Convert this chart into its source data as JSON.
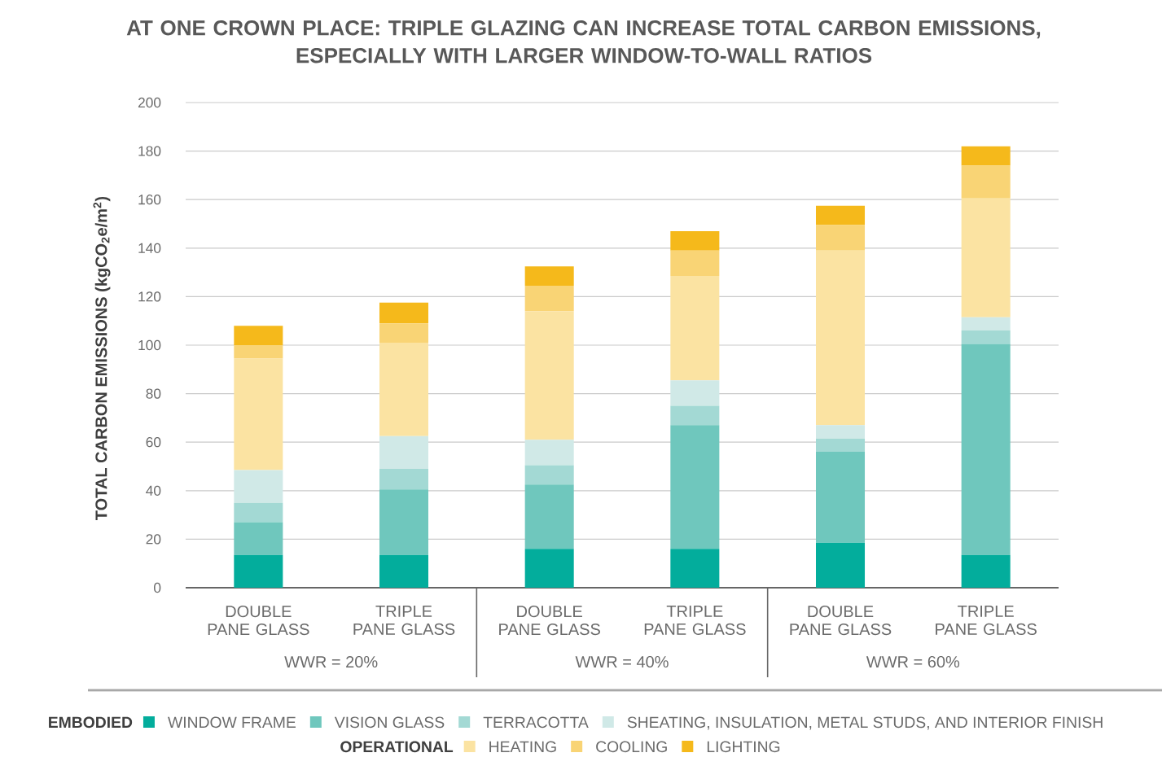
{
  "chart_data": {
    "type": "bar",
    "stacked": true,
    "title": "AT ONE CROWN PLACE: TRIPLE GLAZING CAN INCREASE TOTAL CARBON EMISSIONS, ESPECIALLY WITH LARGER WINDOW-TO-WALL RATIOS",
    "ylabel": "TOTAL CARBON EMISSIONS (kgCO$_{2}$e/m$^{2}$)",
    "categories": [
      "DOUBLE PANE GLASS",
      "TRIPLE PANE GLASS",
      "DOUBLE PANE GLASS",
      "TRIPLE PANE GLASS",
      "DOUBLE PANE GLASS",
      "TRIPLE PANE GLASS"
    ],
    "series": [
      {
        "name": "WINDOW FRAME",
        "color": "#03ad9c",
        "values": [
          13.5,
          13.5,
          16,
          16,
          18.5,
          13.5
        ]
      },
      {
        "name": "VISION GLASS",
        "color": "#6fc7bd",
        "values": [
          13.5,
          27,
          26.5,
          51,
          37.5,
          87
        ]
      },
      {
        "name": "TERRACOTTA",
        "color": "#a3d9d4",
        "values": [
          8,
          8.5,
          8,
          8,
          5.5,
          5.5
        ]
      },
      {
        "name": "SHEATING, INSULATION, METAL STUDS, AND INTERIOR FINISH",
        "color": "#d0e9e7",
        "values": [
          13.5,
          13.5,
          10.5,
          10.5,
          5.5,
          5.5
        ]
      },
      {
        "name": "HEATING",
        "color": "#fbe3a2",
        "values": [
          46,
          38.5,
          53,
          43,
          72,
          49
        ]
      },
      {
        "name": "COOLING",
        "color": "#f9d475",
        "values": [
          5.5,
          8,
          10.5,
          10.5,
          10.5,
          13.5
        ]
      },
      {
        "name": "LIGHTING",
        "color": "#f5b91b",
        "values": [
          8,
          8.5,
          8,
          8,
          8,
          8
        ]
      }
    ],
    "ylim": [
      0,
      200
    ],
    "yticks": [
      0,
      20,
      40,
      60,
      80,
      100,
      120,
      140,
      160,
      180,
      200
    ],
    "grid": "y",
    "legend": "bottom",
    "annotations": [
      "WWR = 20%",
      "WWR = 40%",
      "WWR = 60%",
      "EMBODIED",
      "OPERATIONAL"
    ]
  }
}
